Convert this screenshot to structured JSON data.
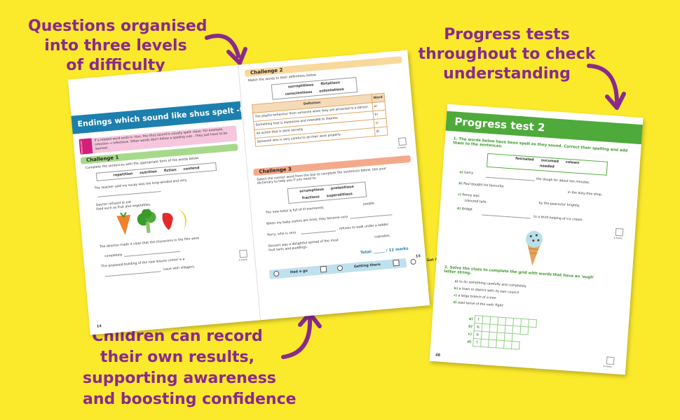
{
  "captions": {
    "levels": [
      "Questions organised",
      "into three levels",
      "of difficulty"
    ],
    "progress": [
      "Progress tests",
      "throughout to check",
      "understanding"
    ],
    "record": [
      "Children can record",
      "their own results,",
      "supporting awareness",
      "and boosting confidence"
    ]
  },
  "colors": {
    "background": "#fbe92c",
    "caption": "#8a2a8c",
    "title_blue": "#1c7fae",
    "test_green": "#4eaa3a"
  },
  "spread": {
    "left": {
      "title": "Endings which sound like shus spelt -tious",
      "info_tag": "Remember",
      "info": "If a related word ends in -tion, the shus sound is usually spelt -tious. For example, infection → infectious. Other words don't follow a spelling rule – they just have to be learned.",
      "challenge1": "Challenge 1",
      "c1_instruction": "Complete the sentences with the appropriate form of the words below.",
      "c1_words": [
        "repetition",
        "nutrition",
        "fiction",
        "contend"
      ],
      "q_a": "The teacher said my essay was too long-winded and very",
      "q_b1": "Gaynor refused to eat",
      "q_b2": "food such as fruit and vegetables.",
      "q_c1": "The director made it clear that the characters in the film were",
      "q_c2": "completely",
      "q_d": "The proposed building of the new leisure centre is a",
      "q_d2": "issue with villagers.",
      "page_number": "14",
      "marks": "4 marks"
    },
    "right": {
      "challenge2": "Challenge 2",
      "c2_instruction": "Match the words to their definitions below.",
      "c2_words": [
        "surreptitious",
        "flirtatious",
        "conscientious",
        "ostentatious"
      ],
      "table_head": [
        "Definition",
        "Word"
      ],
      "table_rows": [
        [
          "The playful behaviour from someone when they are attracted to a person",
          "a)"
        ],
        [
          "Something that is expensive and intended to impress",
          "b)"
        ],
        [
          "An action that is done secretly",
          "c)"
        ],
        [
          "Someone who is very careful to do their work properly",
          "d)"
        ]
      ],
      "challenge3": "Challenge 3",
      "c3_instruction": "Select the correct word from the box to complete the sentences below. Use your dictionary to help you if you need to.",
      "c3_words": [
        "scrumptious",
        "pretentious",
        "fractious",
        "superstitious"
      ],
      "q3_a": "The new hotel is full of ill-mannered,",
      "q3_a2": "people.",
      "q3_b": "When my baby sisters are tired, they become very",
      "q3_c": "Perry, who is very",
      "q3_c2": ", refuses to walk under a ladder.",
      "q3_d": "Dessert was a delightful spread of the most",
      "q3_d2": "cupcakes,",
      "q3_d3": "fruit tarts and puddings.",
      "total": "Total: ______ / 12 marks",
      "footer": [
        "Had a go",
        "Getting there",
        "Got it!"
      ],
      "page_number": "15",
      "marks": "4 marks"
    }
  },
  "ptest": {
    "title": "Progress test 2",
    "q1": "1.  The words below have been spelt as they sound. Correct their spelling and add them to the sentences.",
    "q1_words": [
      "fesinated",
      "sucumed",
      "colown",
      "needed"
    ],
    "q1_a": "Gerry",
    "q1_a2": "the dough for about ten minutes.",
    "q1_b": "Paul bought his favourite",
    "q1_b2": "in the duty-free shop.",
    "q1_c": "Penny was",
    "q1_c2": "by the peacocks' brightly",
    "q1_c3": "coloured tails.",
    "q1_d": "Bridgit",
    "q1_d2": "to a third helping of ice cream.",
    "marks": "4 marks",
    "q2": "2.  Solve the clues to complete the grid with words that have an 'ough' letter string.",
    "clues": [
      [
        "a)",
        "to do something carefully and completely"
      ],
      [
        "b)",
        "a town or district with its own council"
      ],
      [
        "c)",
        "a large branch of a tree"
      ],
      [
        "d)",
        "past tense of the verb 'fight'"
      ]
    ],
    "grid_rows": [
      [
        "a)",
        "t"
      ],
      [
        "b)",
        "b"
      ],
      [
        "c)",
        "b"
      ],
      [
        "d)",
        "f"
      ]
    ],
    "page_number": "48",
    "marks2": "4 marks"
  }
}
